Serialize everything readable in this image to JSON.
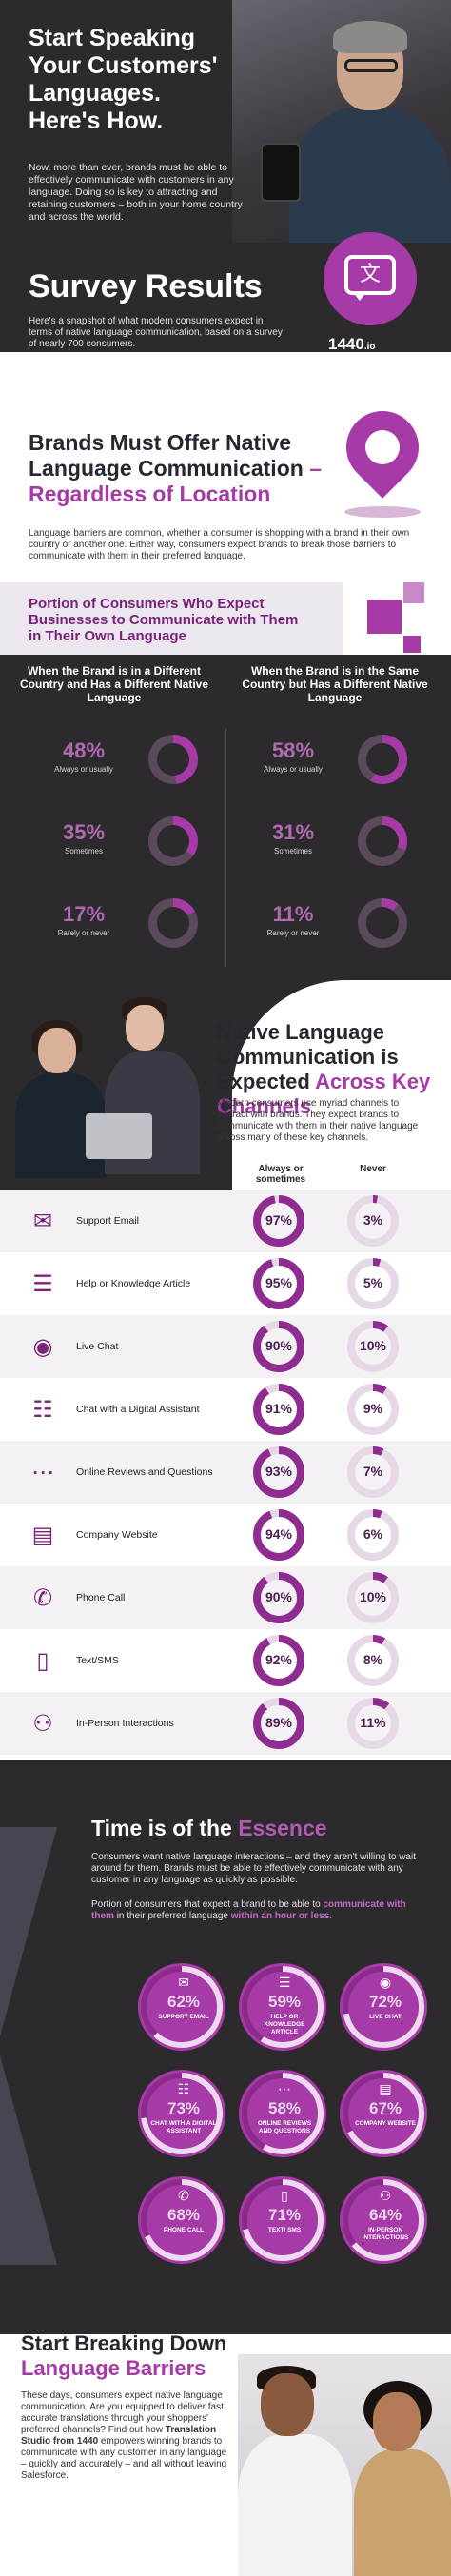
{
  "hero": {
    "title": "Start Speaking Your Customers' Languages.",
    "title_em": "Here's How.",
    "lead": "Now, more than ever, brands must be able to effectively communicate with customers in any language. Doing so is key to attracting and retaining customers – both in your home country and across the world.",
    "survey_title": "Survey Results",
    "snapshot": "Here's a snapshot of what modern consumers expect in terms of native language communication, based on a survey of nearly 700 consumers.",
    "bubble_glyph": "文",
    "brand": "1440",
    "brand_suffix": ".io"
  },
  "native": {
    "title_line": "Brands Must Offer Native Language Communication",
    "title_accent": "– Regardless of Location",
    "desc": "Language barriers are common, whether a consumer is shopping with a brand in their own country or another one. Either way, consumers expect brands to break those barriers to communicate with them in their preferred language.",
    "bar_title": "Portion of Consumers Who Expect Businesses to Communicate with Them in Their Own Language",
    "left_head": "When the Brand is in a Different Country and Has a Different Native Language",
    "right_head": "When the Brand is in the Same Country but Has a Different Native Language",
    "left": [
      {
        "pct": "48%",
        "value": 48,
        "label": "Always or usually"
      },
      {
        "pct": "35%",
        "value": 35,
        "label": "Sometimes"
      },
      {
        "pct": "17%",
        "value": 17,
        "label": "Rarely or never"
      }
    ],
    "right": [
      {
        "pct": "58%",
        "value": 58,
        "label": "Always or usually"
      },
      {
        "pct": "31%",
        "value": 31,
        "label": "Sometimes"
      },
      {
        "pct": "11%",
        "value": 11,
        "label": "Rarely or never"
      }
    ]
  },
  "channels": {
    "title_line": "Native Language Communication is Expected",
    "title_accent": "Across Key Channels",
    "desc": "Modern consumers use myriad channels to interact with brands. They expect brands to communicate with them in their native language across many of these key channels.",
    "col_always": "Always or sometimes",
    "col_never": "Never",
    "rows": [
      {
        "icon": "email-icon",
        "glyph": "✉",
        "name": "Support Email",
        "always": "97%",
        "always_v": 97,
        "never": "3%",
        "never_v": 3
      },
      {
        "icon": "article-icon",
        "glyph": "☰",
        "name": "Help or Knowledge Article",
        "always": "95%",
        "always_v": 95,
        "never": "5%",
        "never_v": 5
      },
      {
        "icon": "live-chat-icon",
        "glyph": "◉",
        "name": "Live Chat",
        "always": "90%",
        "always_v": 90,
        "never": "10%",
        "never_v": 10
      },
      {
        "icon": "assistant-icon",
        "glyph": "☷",
        "name": "Chat with a Digital Assistant",
        "always": "91%",
        "always_v": 91,
        "never": "9%",
        "never_v": 9
      },
      {
        "icon": "reviews-icon",
        "glyph": "⋯",
        "name": "Online Reviews and Questions",
        "always": "93%",
        "always_v": 93,
        "never": "7%",
        "never_v": 7
      },
      {
        "icon": "website-icon",
        "glyph": "▤",
        "name": "Company Website",
        "always": "94%",
        "always_v": 94,
        "never": "6%",
        "never_v": 6
      },
      {
        "icon": "phone-icon",
        "glyph": "✆",
        "name": "Phone Call",
        "always": "90%",
        "always_v": 90,
        "never": "10%",
        "never_v": 10
      },
      {
        "icon": "sms-icon",
        "glyph": "▯",
        "name": "Text/SMS",
        "always": "92%",
        "always_v": 92,
        "never": "8%",
        "never_v": 8
      },
      {
        "icon": "in-person-icon",
        "glyph": "⚇",
        "name": "In-Person Interactions",
        "always": "89%",
        "always_v": 89,
        "never": "11%",
        "never_v": 11
      }
    ]
  },
  "time": {
    "title": "Time is of the",
    "title_accent": "Essence",
    "p1": "Consumers want native language interactions – and they aren't willing to wait around for them. Brands must be able to effectively communicate with any customer in any language as quickly as possible.",
    "p2_a": "Portion of consumers that expect a brand to be able to",
    "p2_hl": "communicate with them",
    "p2_b": "in their preferred language",
    "p2_hl2": "within an hour or less.",
    "tiles": [
      {
        "glyph": "✉",
        "pct": "62%",
        "value": 62,
        "label": "SUPPORT EMAIL"
      },
      {
        "glyph": "☰",
        "pct": "59%",
        "value": 59,
        "label": "HELP OR KNOWLEDGE ARTICLE"
      },
      {
        "glyph": "◉",
        "pct": "72%",
        "value": 72,
        "label": "LIVE CHAT"
      },
      {
        "glyph": "☷",
        "pct": "73%",
        "value": 73,
        "label": "CHAT WITH A DIGITAL ASSISTANT"
      },
      {
        "glyph": "⋯",
        "pct": "58%",
        "value": 58,
        "label": "ONLINE REVIEWS AND QUESTIONS"
      },
      {
        "glyph": "▤",
        "pct": "67%",
        "value": 67,
        "label": "COMPANY WEBSITE"
      },
      {
        "glyph": "✆",
        "pct": "68%",
        "value": 68,
        "label": "PHONE CALL"
      },
      {
        "glyph": "▯",
        "pct": "71%",
        "value": 71,
        "label": "TEXT/ SMS"
      },
      {
        "glyph": "⚇",
        "pct": "64%",
        "value": 64,
        "label": "IN-PERSON INTERACTIONS"
      }
    ]
  },
  "footer": {
    "title_line": "Start Breaking Down",
    "title_accent": "Language Barriers",
    "desc_a": "These days, consumers expect native language communication. Are you equipped to deliver fast, accurate translations through your shoppers' preferred channels? Find out how",
    "desc_b": "Translation Studio from 1440",
    "desc_c": "empowers winning brands to communicate with any customer in any language – quickly and accurately – and all without leaving Salesforce."
  },
  "colors": {
    "accent": "#a63aa6",
    "dark": "#2d2a2e",
    "ring_track": "#5a4a5c"
  }
}
